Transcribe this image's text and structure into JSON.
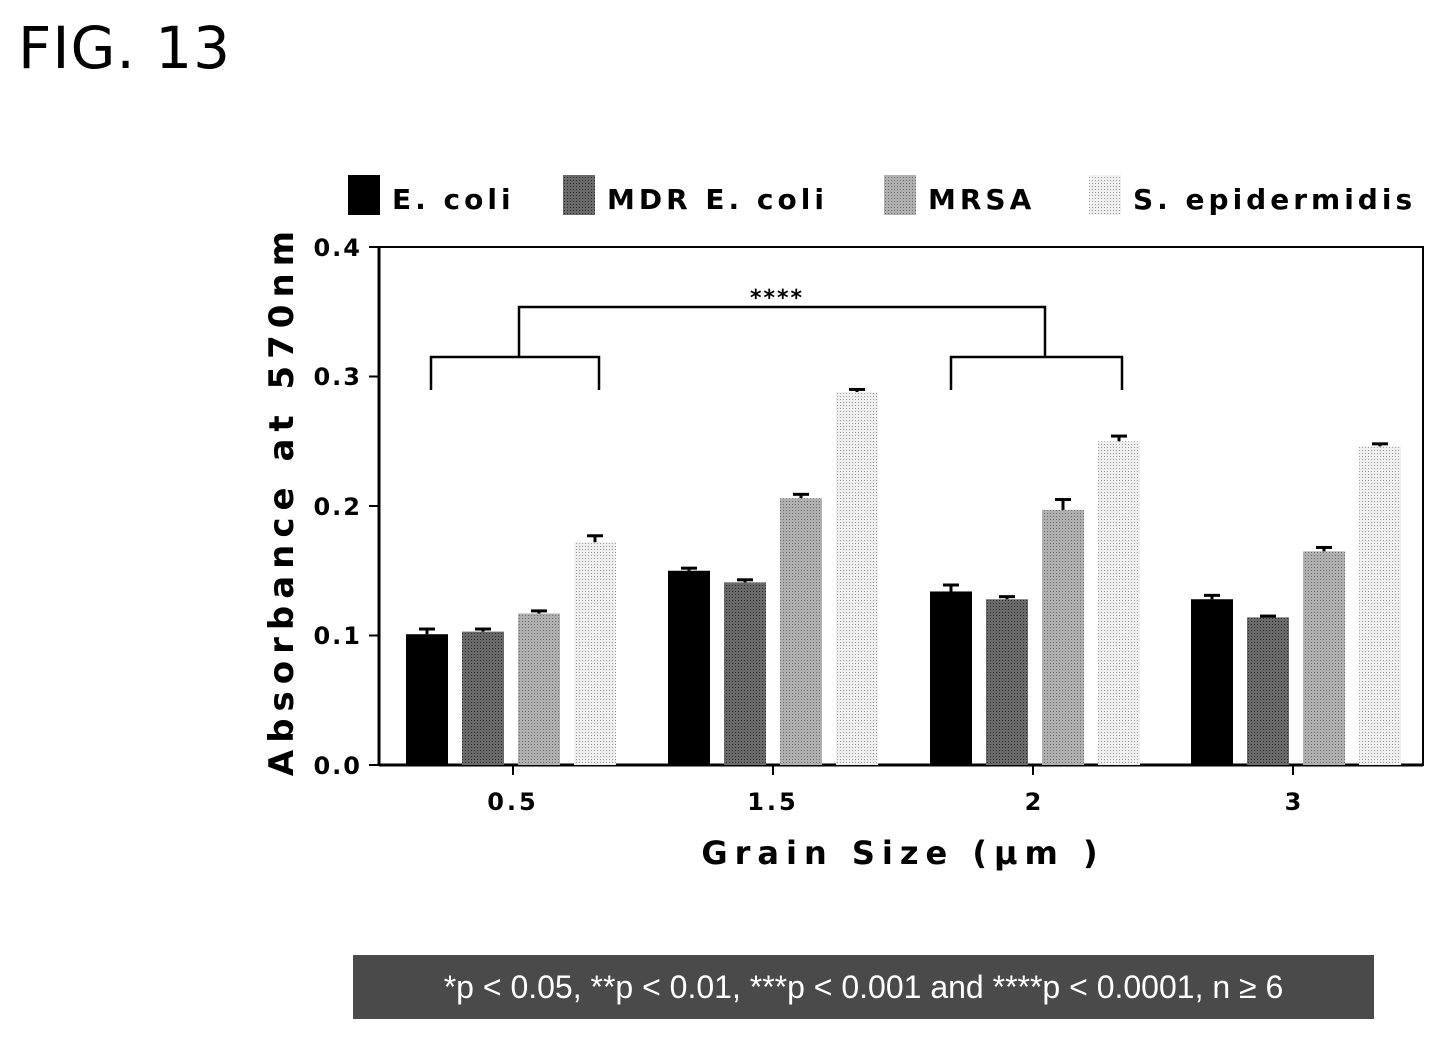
{
  "figure_label": "FIG. 13",
  "footnote": "*p < 0.05, **p < 0.01, ***p < 0.001 and ****p < 0.0001, n ≥ 6",
  "chart_data": {
    "type": "bar",
    "xlabel": "Grain Size (μm )",
    "ylabel": "Absorbance at 570nm",
    "ylim": [
      0,
      0.4
    ],
    "yticks": [
      "0.0",
      "0.1",
      "0.2",
      "0.3",
      "0.4"
    ],
    "categories": [
      "0.5",
      "1.5",
      "2",
      "3"
    ],
    "series": [
      {
        "name": "E. coli",
        "color": "#000000",
        "values": [
          0.101,
          0.15,
          0.134,
          0.128
        ],
        "errors": [
          0.004,
          0.002,
          0.005,
          0.003
        ]
      },
      {
        "name": "MDR E. coli",
        "color": "#555555",
        "values": [
          0.103,
          0.141,
          0.128,
          0.114
        ],
        "errors": [
          0.002,
          0.002,
          0.002,
          0.001
        ]
      },
      {
        "name": "MRSA",
        "color": "#9a9a9a",
        "values": [
          0.117,
          0.206,
          0.197,
          0.165
        ],
        "errors": [
          0.002,
          0.003,
          0.008,
          0.003
        ]
      },
      {
        "name": "S. epidermidis",
        "color": "#dcdcdc",
        "values": [
          0.172,
          0.288,
          0.25,
          0.246
        ],
        "errors": [
          0.005,
          0.002,
          0.004,
          0.002
        ]
      }
    ],
    "legend_position": "top",
    "annotation": "****"
  }
}
